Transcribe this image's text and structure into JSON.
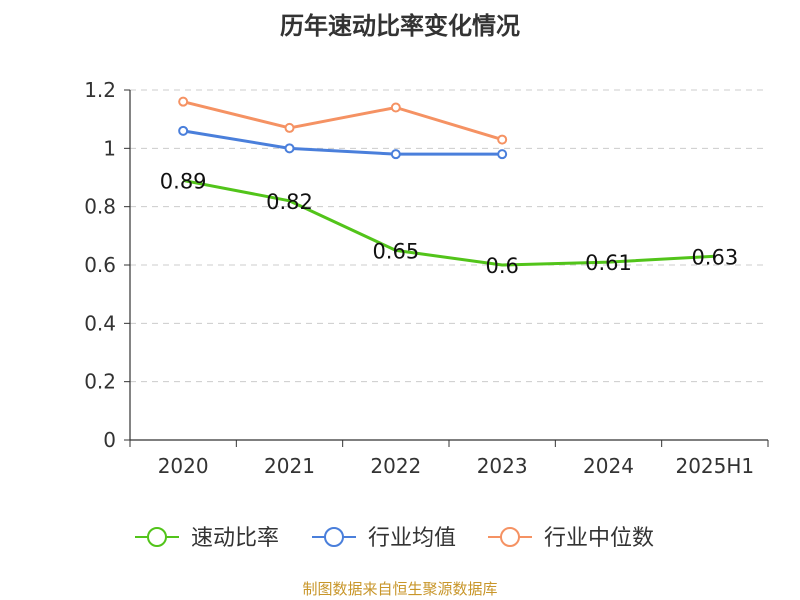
{
  "title": "历年速动比率变化情况",
  "source": "制图数据来自恒生聚源数据库",
  "chart_data": {
    "type": "line",
    "categories": [
      "2020",
      "2021",
      "2022",
      "2023",
      "2024",
      "2025H1"
    ],
    "ylim": [
      0,
      1.2
    ],
    "yticks": [
      "0",
      "0.2",
      "0.4",
      "0.6",
      "0.8",
      "1",
      "1.2"
    ],
    "grid": true,
    "legend_position": "bottom",
    "series": [
      {
        "name": "速动比率",
        "color": "#52c41a",
        "values": [
          0.89,
          0.82,
          0.65,
          0.6,
          0.61,
          0.63
        ],
        "show_labels": true,
        "labels": [
          "0.89",
          "0.82",
          "0.65",
          "0.6",
          "0.61",
          "0.63"
        ],
        "show_markers": false
      },
      {
        "name": "行业均值",
        "color": "#4a7fdb",
        "values": [
          1.06,
          1.0,
          0.98,
          0.98,
          null,
          null
        ],
        "show_labels": false,
        "show_markers": true
      },
      {
        "name": "行业中位数",
        "color": "#f59263",
        "values": [
          1.16,
          1.07,
          1.14,
          1.03,
          null,
          null
        ],
        "show_labels": false,
        "show_markers": true
      }
    ]
  }
}
